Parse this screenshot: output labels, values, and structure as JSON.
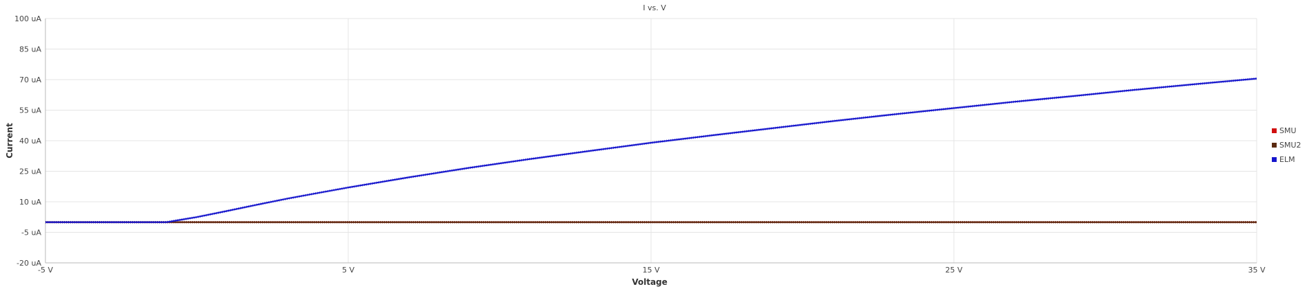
{
  "chart_data": {
    "type": "line",
    "title": "I vs. V",
    "xlabel": "Voltage",
    "ylabel": "Current",
    "xlim": [
      -5,
      35
    ],
    "ylim": [
      -20,
      100
    ],
    "x_ticks": [
      {
        "value": -5,
        "label": "-5 V"
      },
      {
        "value": 5,
        "label": "5 V"
      },
      {
        "value": 15,
        "label": "15 V"
      },
      {
        "value": 25,
        "label": "25 V"
      },
      {
        "value": 35,
        "label": "35 V"
      }
    ],
    "y_ticks": [
      {
        "value": -20,
        "label": "-20 uA"
      },
      {
        "value": -5,
        "label": "-5 uA"
      },
      {
        "value": 10,
        "label": "10 uA"
      },
      {
        "value": 25,
        "label": "25 uA"
      },
      {
        "value": 40,
        "label": "40 uA"
      },
      {
        "value": 55,
        "label": "55 uA"
      },
      {
        "value": 70,
        "label": "70 uA"
      },
      {
        "value": 85,
        "label": "85 uA"
      },
      {
        "value": 100,
        "label": "100 uA"
      }
    ],
    "grid": true,
    "legend_position": "right",
    "series": [
      {
        "name": "SMU",
        "color": "#d01010",
        "x": [
          -5,
          35
        ],
        "y": [
          0,
          0
        ]
      },
      {
        "name": "SMU2",
        "color": "#5a2a10",
        "x": [
          -5,
          35
        ],
        "y": [
          0,
          0
        ]
      },
      {
        "name": "ELM",
        "color": "#1515cc",
        "x": [
          -5,
          -1,
          0,
          1,
          2,
          3,
          4,
          5,
          7,
          9,
          11,
          13,
          15,
          17,
          19,
          21,
          23,
          25,
          27,
          29,
          31,
          33,
          35
        ],
        "y": [
          0,
          0,
          2.5,
          5.5,
          8.6,
          11.6,
          14.3,
          17,
          22,
          26.7,
          31,
          35,
          39,
          42.6,
          46.1,
          49.6,
          52.9,
          56,
          59.1,
          62,
          65,
          67.8,
          70.5
        ]
      }
    ]
  }
}
